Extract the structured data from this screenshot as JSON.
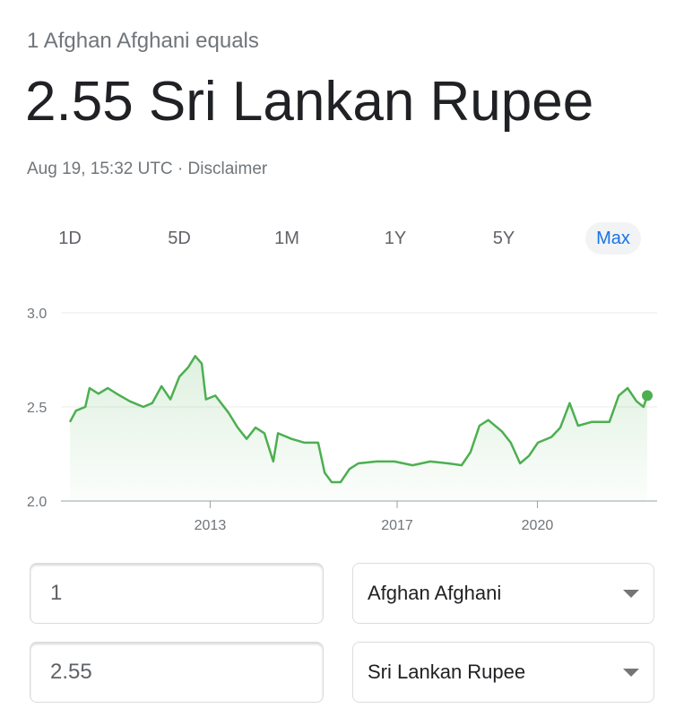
{
  "header": {
    "subtitle": "1 Afghan Afghani equals",
    "result": "2.55 Sri Lankan Rupee",
    "timestamp": "Aug 19, 15:32 UTC",
    "separator": "·",
    "disclaimer": "Disclaimer"
  },
  "ranges": [
    "1D",
    "5D",
    "1M",
    "1Y",
    "5Y",
    "Max"
  ],
  "chart_data": {
    "type": "line",
    "x": [
      2010.0,
      2010.13,
      2010.33,
      2010.42,
      2010.61,
      2010.81,
      2011.0,
      2011.28,
      2011.57,
      2011.76,
      2011.96,
      2012.15,
      2012.34,
      2012.53,
      2012.68,
      2012.82,
      2012.91,
      2013.11,
      2013.39,
      2013.59,
      2013.78,
      2013.97,
      2014.16,
      2014.35,
      2014.45,
      2014.74,
      2015.02,
      2015.31,
      2015.45,
      2015.6,
      2015.79,
      2015.98,
      2016.17,
      2016.56,
      2016.94,
      2017.33,
      2017.71,
      2018.09,
      2018.38,
      2018.57,
      2018.76,
      2018.95,
      2019.24,
      2019.43,
      2019.63,
      2019.82,
      2020.01,
      2020.3,
      2020.49,
      2020.69,
      2020.87,
      2021.16,
      2021.54,
      2021.74,
      2021.93,
      2022.12,
      2022.27,
      2022.35
    ],
    "series": [
      {
        "color": "#4caf50",
        "values": [
          2.42,
          2.48,
          2.5,
          2.6,
          2.57,
          2.6,
          2.57,
          2.53,
          2.5,
          2.52,
          2.61,
          2.54,
          2.66,
          2.71,
          2.77,
          2.73,
          2.54,
          2.56,
          2.47,
          2.39,
          2.33,
          2.39,
          2.36,
          2.21,
          2.36,
          2.33,
          2.31,
          2.31,
          2.15,
          2.1,
          2.1,
          2.17,
          2.2,
          2.21,
          2.21,
          2.19,
          2.21,
          2.2,
          2.19,
          2.26,
          2.4,
          2.43,
          2.37,
          2.31,
          2.2,
          2.24,
          2.31,
          2.34,
          2.39,
          2.52,
          2.4,
          2.42,
          2.42,
          2.56,
          2.6,
          2.53,
          2.5,
          2.56
        ]
      }
    ],
    "xlim": [
      2010,
      2022.35
    ],
    "xticks": [
      2013,
      2017,
      2020
    ],
    "ylim": [
      2,
      3
    ],
    "yticks": [
      {
        "value": 2,
        "label": "2.0"
      },
      {
        "value": 2.5,
        "label": "2.5"
      },
      {
        "value": 3,
        "label": "3.0"
      }
    ],
    "grid": true
  },
  "converter": {
    "rows": [
      {
        "amount": 1,
        "currency": "Afghan Afghani"
      },
      {
        "amount": 2.55,
        "currency": "Sri Lankan Rupee"
      }
    ]
  }
}
